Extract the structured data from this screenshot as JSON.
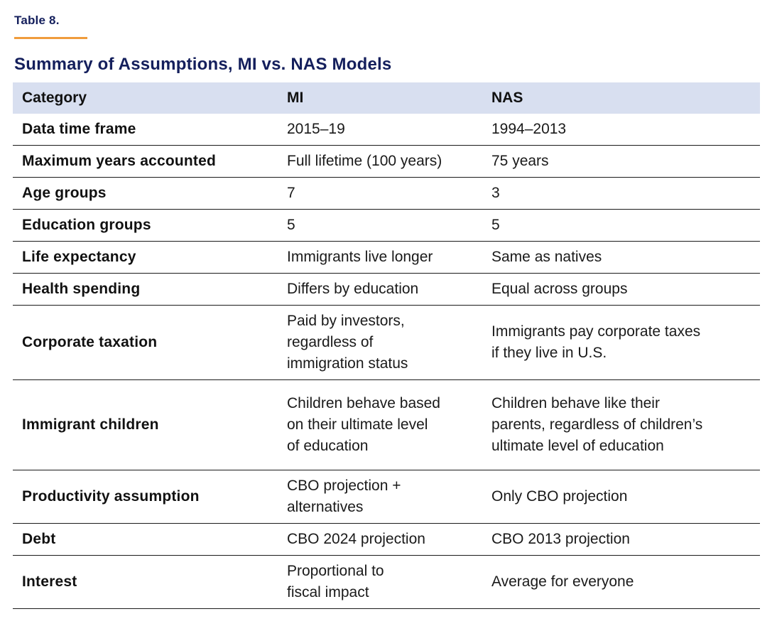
{
  "page": {
    "table_label": "Table 8.",
    "title": "Summary of Assumptions, MI vs. NAS Models"
  },
  "colors": {
    "accent_orange": "#F09C3C",
    "title_navy": "#141F5C",
    "header_row_bg": "#D8DFF0",
    "body_text": "#1A1A1A",
    "row_divider": "#1A1A1A"
  },
  "table": {
    "columns": [
      {
        "key": "category",
        "label": "Category"
      },
      {
        "key": "mi",
        "label": "MI"
      },
      {
        "key": "nas",
        "label": "NAS"
      }
    ],
    "rows": [
      {
        "category": "Data time frame",
        "mi": "2015–19",
        "nas": "1994–2013"
      },
      {
        "category": "Maximum years accounted",
        "mi": "Full lifetime (100 years)",
        "nas": "75 years"
      },
      {
        "category": "Age groups",
        "mi": "7",
        "nas": "3"
      },
      {
        "category": "Education groups",
        "mi": "5",
        "nas": "5"
      },
      {
        "category": "Life expectancy",
        "mi": "Immigrants live longer",
        "nas": "Same as natives"
      },
      {
        "category": "Health spending",
        "mi": "Differs by education",
        "nas": "Equal across groups"
      },
      {
        "category": "Corporate taxation",
        "mi": "Paid by investors,\nregardless of\nimmigration status",
        "nas": "Immigrants pay corporate taxes\nif they live in U.S."
      },
      {
        "category": "Immigrant children",
        "mi": "Children behave based\non their ultimate level\nof education",
        "nas": "Children behave like their\nparents, regardless of children’s\nultimate level of education"
      },
      {
        "category": "Productivity assumption",
        "mi": "CBO projection +\nalternatives",
        "nas": "Only CBO projection"
      },
      {
        "category": "Debt",
        "mi": "CBO 2024 projection",
        "nas": "CBO 2013 projection"
      },
      {
        "category": "Interest",
        "mi": "Proportional to\nfiscal impact",
        "nas": "Average for everyone"
      }
    ]
  }
}
